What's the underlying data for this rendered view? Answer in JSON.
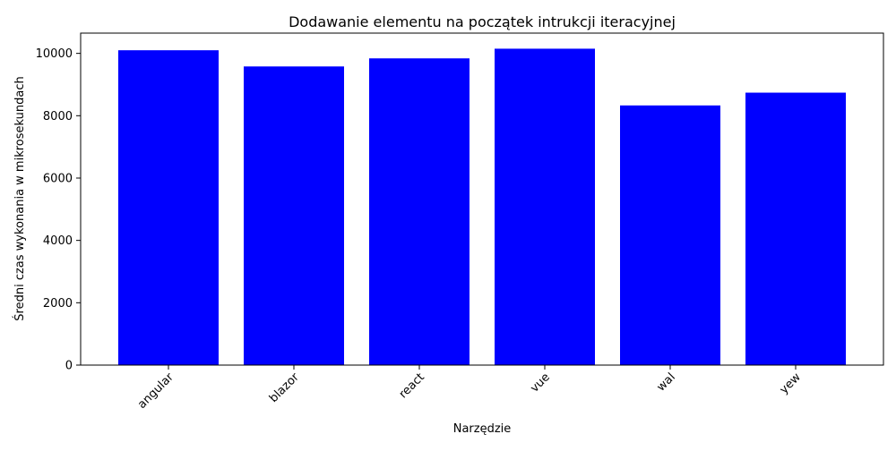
{
  "chart_data": {
    "type": "bar",
    "title": "Dodawanie elementu na początek intrukcji iteracyjnej",
    "xlabel": "Narzędzie",
    "ylabel": "Średni czas wykonania w mikrosekundach",
    "categories": [
      "angular",
      "blazor",
      "react",
      "vue",
      "wal",
      "yew"
    ],
    "values": [
      10100,
      9580,
      9840,
      10150,
      8330,
      8740
    ],
    "ylim": [
      0,
      10650
    ],
    "yticks": [
      0,
      2000,
      4000,
      6000,
      8000,
      10000
    ],
    "bar_color": "#0000ff",
    "grid": false,
    "legend": "none"
  }
}
